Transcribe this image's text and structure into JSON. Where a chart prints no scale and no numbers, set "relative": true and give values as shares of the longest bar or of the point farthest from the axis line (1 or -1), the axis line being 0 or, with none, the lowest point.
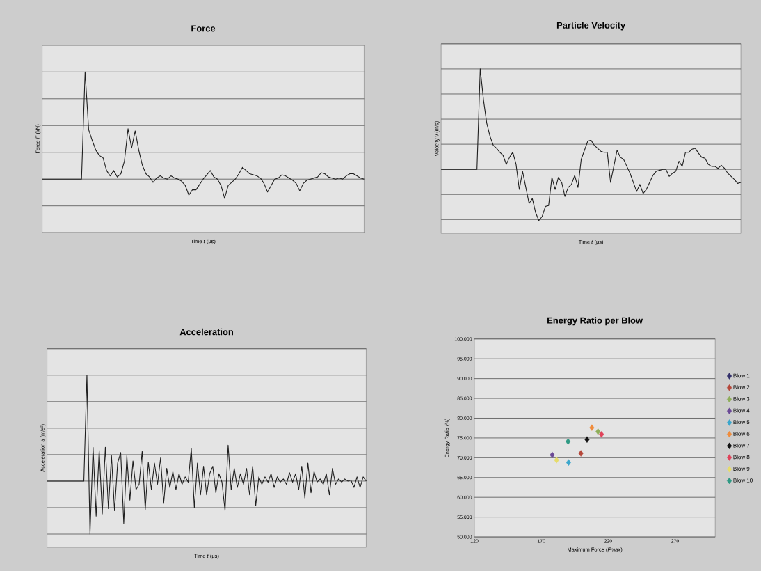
{
  "chart_data": [
    {
      "type": "line",
      "title": "Force",
      "xlabel": "Time *t* (μs)",
      "ylabel": "Force *F* (kN)",
      "relative": true,
      "grid": "y",
      "color": "#1e1e1e",
      "categories": [
        null,
        null,
        null,
        null,
        null,
        null,
        null,
        null,
        null,
        null,
        null,
        null,
        null,
        null,
        null,
        null,
        null,
        null,
        null,
        null,
        null,
        null,
        null,
        null,
        null,
        null,
        null,
        null,
        null,
        null,
        null,
        null,
        null,
        null,
        null,
        null,
        null,
        null,
        null,
        null,
        null,
        null,
        null,
        null,
        null,
        null,
        null,
        null,
        null,
        null,
        null,
        null,
        null,
        null,
        null,
        null,
        null,
        null,
        null,
        null,
        null,
        null,
        null,
        null,
        null,
        null,
        null,
        null,
        null,
        null,
        null,
        null,
        null,
        null,
        null,
        null,
        null,
        null,
        null,
        null,
        null,
        null,
        null,
        null,
        null,
        null,
        null,
        null,
        null,
        null,
        null
      ],
      "values": [
        0,
        0,
        0,
        0,
        0,
        0,
        0,
        0,
        0,
        0,
        0,
        0,
        1.0,
        0.46,
        0.36,
        0.27,
        0.22,
        0.2,
        0.08,
        0.03,
        0.08,
        0.02,
        0.05,
        0.17,
        0.47,
        0.29,
        0.45,
        0.27,
        0.13,
        0.05,
        0.02,
        -0.03,
        0.01,
        0.03,
        0.01,
        0,
        0.03,
        0.01,
        0,
        -0.02,
        -0.06,
        -0.15,
        -0.1,
        -0.1,
        -0.05,
        0,
        0.04,
        0.08,
        0.02,
        0,
        -0.06,
        -0.18,
        -0.06,
        -0.03,
        0,
        0.05,
        0.11,
        0.08,
        0.05,
        0.04,
        0.03,
        0.01,
        -0.04,
        -0.12,
        -0.06,
        0,
        0.01,
        0.04,
        0.03,
        0.01,
        -0.01,
        -0.04,
        -0.11,
        -0.04,
        -0.01,
        0,
        0.01,
        0.02,
        0.06,
        0.05,
        0.02,
        0.01,
        0,
        0.01,
        0,
        0.03,
        0.05,
        0.05,
        0.03,
        0.01,
        0
      ]
    },
    {
      "type": "line",
      "title": "Particle Velocity",
      "xlabel": "Time *t* (μs)",
      "ylabel": "Velocity v (m/s)",
      "relative": true,
      "grid": "y",
      "color": "#1e1e1e",
      "categories": [
        null,
        null,
        null,
        null,
        null,
        null,
        null,
        null,
        null,
        null,
        null,
        null,
        null,
        null,
        null,
        null,
        null,
        null,
        null,
        null,
        null,
        null,
        null,
        null,
        null,
        null,
        null,
        null,
        null,
        null,
        null,
        null,
        null,
        null,
        null,
        null,
        null,
        null,
        null,
        null,
        null,
        null,
        null,
        null,
        null,
        null,
        null,
        null,
        null,
        null,
        null,
        null,
        null,
        null,
        null,
        null,
        null,
        null,
        null,
        null,
        null,
        null,
        null,
        null,
        null,
        null,
        null,
        null,
        null,
        null,
        null,
        null,
        null,
        null,
        null,
        null,
        null,
        null,
        null,
        null,
        null,
        null,
        null,
        null,
        null,
        null,
        null,
        null,
        null,
        null,
        null,
        null,
        null
      ],
      "values": [
        0,
        0,
        0,
        0,
        0,
        0,
        0,
        0,
        0,
        0,
        0,
        0,
        1.0,
        0.69,
        0.46,
        0.33,
        0.24,
        0.21,
        0.17,
        0.14,
        0.05,
        0.12,
        0.17,
        0.05,
        -0.2,
        -0.02,
        -0.18,
        -0.34,
        -0.29,
        -0.43,
        -0.51,
        -0.47,
        -0.37,
        -0.36,
        -0.08,
        -0.2,
        -0.08,
        -0.13,
        -0.27,
        -0.18,
        -0.15,
        -0.06,
        -0.18,
        0.1,
        0.19,
        0.28,
        0.29,
        0.24,
        0.21,
        0.18,
        0.17,
        0.17,
        -0.13,
        0.03,
        0.19,
        0.12,
        0.1,
        0.03,
        -0.04,
        -0.13,
        -0.22,
        -0.15,
        -0.24,
        -0.2,
        -0.13,
        -0.06,
        -0.02,
        -0.01,
        0,
        0,
        -0.07,
        -0.04,
        -0.02,
        0.08,
        0.03,
        0.17,
        0.17,
        0.2,
        0.21,
        0.16,
        0.12,
        0.11,
        0.05,
        0.03,
        0.03,
        0.01,
        0.04,
        0.01,
        -0.04,
        -0.07,
        -0.1,
        -0.14,
        -0.13
      ]
    },
    {
      "type": "line",
      "title": "Acceleration",
      "xlabel": "Time *t* (μs)",
      "ylabel": "Acceleration a (m/s²)",
      "relative": true,
      "grid": "y",
      "color": "#1e1e1e",
      "categories": [
        null,
        null,
        null,
        null,
        null,
        null,
        null,
        null,
        null,
        null,
        null,
        null,
        null,
        null,
        null,
        null,
        null,
        null,
        null,
        null,
        null,
        null,
        null,
        null,
        null,
        null,
        null,
        null,
        null,
        null,
        null,
        null,
        null,
        null,
        null,
        null,
        null,
        null,
        null,
        null,
        null,
        null,
        null,
        null,
        null,
        null,
        null,
        null,
        null,
        null,
        null,
        null,
        null,
        null,
        null,
        null,
        null,
        null,
        null,
        null,
        null,
        null,
        null,
        null,
        null,
        null,
        null,
        null,
        null,
        null,
        null,
        null,
        null,
        null,
        null,
        null,
        null,
        null,
        null,
        null,
        null,
        null,
        null,
        null,
        null,
        null,
        null,
        null,
        null,
        null,
        null,
        null,
        null,
        null,
        null,
        null,
        null,
        null,
        null,
        null,
        null,
        null,
        null,
        null,
        null
      ],
      "values": [
        0,
        0,
        0,
        0,
        0,
        0,
        0,
        0,
        0,
        0,
        0,
        0,
        0,
        1.0,
        -0.5,
        0.32,
        -0.33,
        0.29,
        -0.31,
        0.32,
        -0.26,
        0.24,
        -0.28,
        0.17,
        0.27,
        -0.4,
        0.24,
        -0.18,
        0.19,
        -0.08,
        -0.03,
        0.28,
        -0.27,
        0.18,
        -0.08,
        0.17,
        -0.03,
        0.22,
        -0.21,
        0.12,
        -0.06,
        0.09,
        -0.08,
        0.07,
        -0.03,
        0.04,
        -0.01,
        0.31,
        -0.25,
        0.17,
        -0.13,
        0.14,
        -0.13,
        0.07,
        0.14,
        -0.11,
        0.07,
        -0.01,
        -0.28,
        0.34,
        -0.08,
        0.12,
        -0.06,
        0.07,
        -0.03,
        0.12,
        -0.13,
        0.14,
        -0.23,
        0.04,
        -0.03,
        0.04,
        -0.01,
        0.07,
        -0.06,
        0.04,
        -0.01,
        0.02,
        -0.03,
        0.08,
        -0.01,
        0.07,
        -0.08,
        0.14,
        -0.16,
        0.17,
        -0.11,
        0.09,
        -0.01,
        0.02,
        -0.03,
        0.07,
        -0.13,
        0.12,
        -0.03,
        0.02,
        -0.01,
        0.02,
        0,
        0.01,
        -0.06,
        0.04,
        -0.06,
        0.04,
        0
      ]
    },
    {
      "type": "scatter",
      "title": "Energy Ratio per Blow",
      "xlabel": "Maximum Force (*Fmax*)",
      "ylabel": "Energy Ratio (%)",
      "grid": "y",
      "marker": "diamond",
      "legend": "right",
      "xlim": [
        120,
        300
      ],
      "xticks": [
        120,
        170,
        220,
        270
      ],
      "ylim": [
        50,
        100
      ],
      "yticks": [
        {
          "value": 50,
          "label": "50.000"
        },
        {
          "value": 55,
          "label": "55.000"
        },
        {
          "value": 60,
          "label": "60.000"
        },
        {
          "value": 65,
          "label": "65.000"
        },
        {
          "value": 70,
          "label": "70.000"
        },
        {
          "value": 75,
          "label": "75.000"
        },
        {
          "value": 80,
          "label": "80.000"
        },
        {
          "value": 85,
          "label": "85.000"
        },
        {
          "value": 90,
          "label": "90.000"
        },
        {
          "value": 95,
          "label": "95.000"
        },
        {
          "value": 100,
          "label": "100.000"
        }
      ],
      "series": [
        {
          "name": "Blow 1",
          "color": "#33306b",
          "x": [
            null
          ],
          "values": [
            null
          ]
        },
        {
          "name": "Blow 2",
          "color": "#b5473a",
          "x": [
            199.6
          ],
          "values": [
            71.1
          ]
        },
        {
          "name": "Blow 3",
          "color": "#8fae5a",
          "x": [
            212.4
          ],
          "values": [
            76.6
          ]
        },
        {
          "name": "Blow 4",
          "color": "#6b4a96",
          "x": [
            178.2
          ],
          "values": [
            70.7
          ]
        },
        {
          "name": "Blow 5",
          "color": "#3aa6cc",
          "x": [
            190.4
          ],
          "values": [
            68.8
          ]
        },
        {
          "name": "Blow 6",
          "color": "#f08c3c",
          "x": [
            207.8
          ],
          "values": [
            77.6
          ]
        },
        {
          "name": "Blow 7",
          "color": "#111111",
          "x": [
            204.2
          ],
          "values": [
            74.6
          ]
        },
        {
          "name": "Blow 8",
          "color": "#e0425a",
          "x": [
            215.0
          ],
          "values": [
            75.9
          ]
        },
        {
          "name": "Blow 9",
          "color": "#e6dc6a",
          "x": [
            181.4
          ],
          "values": [
            69.4
          ]
        },
        {
          "name": "Blow 10",
          "color": "#2f9a84",
          "x": [
            190.0
          ],
          "values": [
            74.1
          ]
        }
      ]
    }
  ]
}
